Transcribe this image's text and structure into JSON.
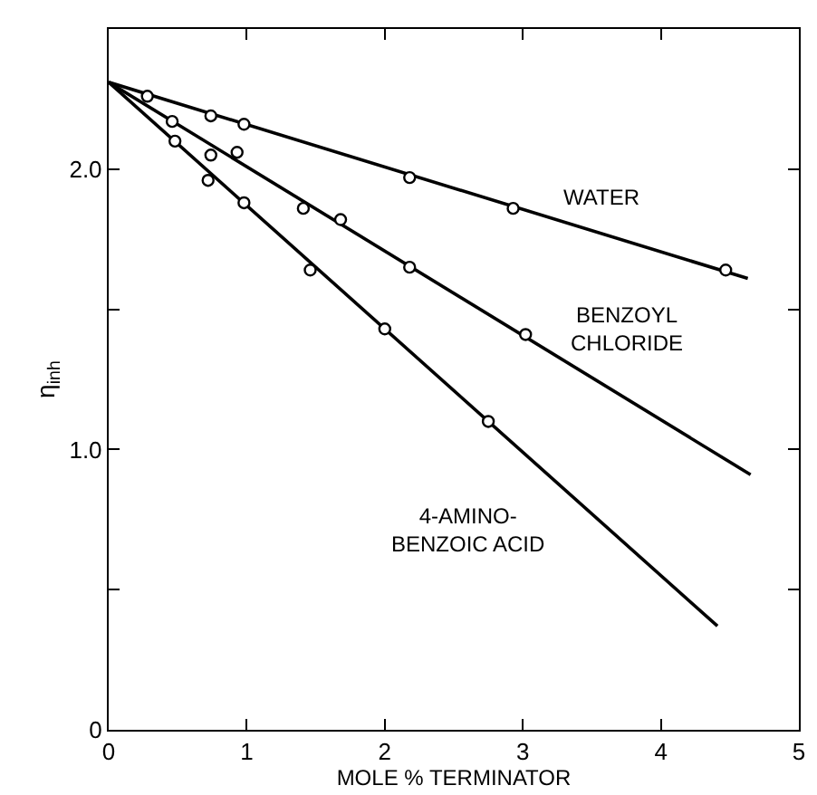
{
  "chart_data": {
    "type": "scatter",
    "xlabel": "MOLE % TERMINATOR",
    "ylabel": "η$_{inh}$",
    "xlim": [
      0,
      5
    ],
    "xticks": [
      0,
      1,
      2,
      3,
      4,
      5
    ],
    "ylim": [
      0,
      2.5
    ],
    "yticks": [
      0,
      {
        "value": 0.5,
        "label": null
      },
      {
        "value": 1.0,
        "label": "1.0"
      },
      {
        "value": 1.5,
        "label": null
      },
      {
        "value": 2.0,
        "label": "2.0"
      }
    ],
    "legend": false,
    "series": [
      {
        "type": "line",
        "name": "WATER",
        "color": "#000000",
        "marker": "none",
        "line_style": "solid",
        "x": [
          0,
          4.63
        ],
        "values": [
          2.31,
          1.61
        ]
      },
      {
        "color": "#000000",
        "marker": "circle",
        "x": [
          0.28,
          0.74,
          0.98,
          2.18,
          2.93,
          4.47
        ],
        "values": [
          2.26,
          2.19,
          2.16,
          1.97,
          1.86,
          1.64
        ]
      },
      {
        "type": "line",
        "name": "BENZOYL\nCHLORIDE",
        "color": "#000000",
        "marker": "none",
        "line_style": "solid",
        "x": [
          0,
          4.65
        ],
        "values": [
          2.31,
          0.91
        ]
      },
      {
        "color": "#000000",
        "marker": "circle",
        "x": [
          0.46,
          0.74,
          0.93,
          1.41,
          1.68,
          2.18,
          3.02
        ],
        "values": [
          2.17,
          2.05,
          2.06,
          1.86,
          1.82,
          1.65,
          1.41
        ]
      },
      {
        "type": "line",
        "name": "4-AMINO-\nBENZOIC ACID",
        "color": "#000000",
        "marker": "none",
        "line_style": "solid",
        "x": [
          0,
          4.41
        ],
        "values": [
          2.31,
          0.37
        ]
      },
      {
        "color": "#000000",
        "marker": "circle",
        "x": [
          0.48,
          0.72,
          0.98,
          1.46,
          2.0,
          2.75
        ],
        "values": [
          2.1,
          1.96,
          1.88,
          1.64,
          1.43,
          1.1
        ]
      }
    ]
  }
}
